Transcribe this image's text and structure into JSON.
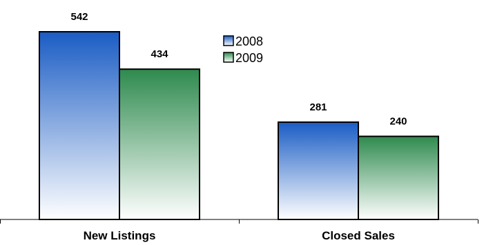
{
  "chart_data": {
    "type": "bar",
    "title": "",
    "xlabel": "",
    "ylabel": "",
    "categories": [
      "New Listings",
      "Closed Sales"
    ],
    "series": [
      {
        "name": "2008",
        "values": [
          542,
          281
        ],
        "color_top": "#1a5cc4",
        "color_bottom": "#ffffff"
      },
      {
        "name": "2009",
        "values": [
          434,
          240
        ],
        "color_top": "#2e8a4e",
        "color_bottom": "#ffffff"
      }
    ],
    "ylim": [
      0,
      542
    ],
    "grid": false,
    "legend": "top-center",
    "data_labels": [
      "542",
      "434",
      "281",
      "240"
    ]
  }
}
